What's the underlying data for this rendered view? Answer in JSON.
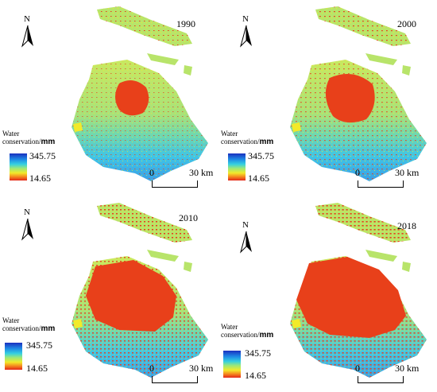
{
  "legend": {
    "title_line1": "Water",
    "title_line2": "conservation/",
    "unit": "mm",
    "max_value": "345.75",
    "min_value": "14.65",
    "gradient_colors": [
      "#1a2fbf",
      "#1e8be6",
      "#35d0e0",
      "#9be87a",
      "#f2ea2a",
      "#f58a1e",
      "#e3271a"
    ]
  },
  "scale": {
    "zero_label": "0",
    "max_label": "30 km"
  },
  "north_label": "N",
  "panels": [
    {
      "year": "1990",
      "urban_extent": 0.22
    },
    {
      "year": "2000",
      "urban_extent": 0.35
    },
    {
      "year": "2010",
      "urban_extent": 0.55
    },
    {
      "year": "2018",
      "urban_extent": 0.72
    }
  ],
  "colors": {
    "urban_red": "#e8401a",
    "vegetation_green": "#9be87a",
    "water_cyan": "#35c8e6",
    "water_blue": "#1e66d6",
    "yellow": "#f2ea2a"
  }
}
